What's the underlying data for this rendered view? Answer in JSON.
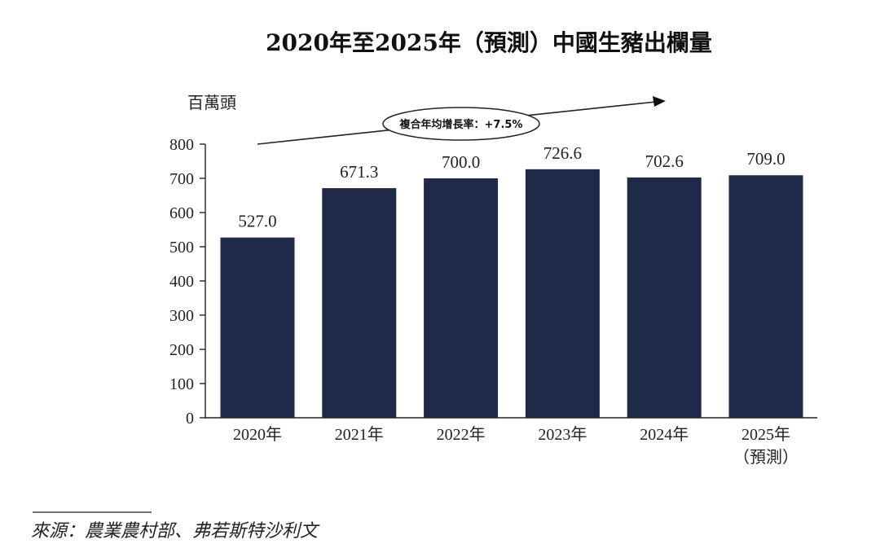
{
  "chart_data": {
    "type": "bar",
    "title": "2020年至2025年（預測）中國生豬出欄量",
    "ylabel": "百萬頭",
    "categories": [
      "2020年",
      "2021年",
      "2022年",
      "2023年",
      "2024年",
      "2025年"
    ],
    "category_sublabels": [
      "",
      "",
      "",
      "",
      "",
      "（預測）"
    ],
    "values": [
      527.0,
      671.3,
      700.0,
      726.6,
      702.6,
      709.0
    ],
    "value_labels": [
      "527.0",
      "671.3",
      "700.0",
      "726.6",
      "702.6",
      "709.0"
    ],
    "ylim": [
      0,
      800
    ],
    "yticks": [
      0,
      100,
      200,
      300,
      400,
      500,
      600,
      700,
      800
    ],
    "annotation": "複合年均增長率：+7.5%",
    "bar_color": "#1e2a47",
    "grid": false,
    "legend": "none"
  },
  "source": "來源：農業農村部、弗若斯特沙利文"
}
